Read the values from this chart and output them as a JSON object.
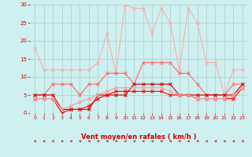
{
  "x": [
    0,
    1,
    2,
    3,
    4,
    5,
    6,
    7,
    8,
    9,
    10,
    11,
    12,
    13,
    14,
    15,
    16,
    17,
    18,
    19,
    20,
    21,
    22,
    23
  ],
  "series": [
    {
      "y": [
        18,
        12,
        12,
        12,
        12,
        12,
        12,
        14,
        22,
        11,
        30,
        29,
        29,
        22,
        29,
        25,
        12,
        29,
        25,
        14,
        14,
        5,
        12,
        12
      ],
      "color": "#ffaaaa",
      "lw": 0.8,
      "marker": "x",
      "ms": 2.5
    },
    {
      "y": [
        5,
        5,
        8,
        8,
        8,
        5,
        8,
        8,
        11,
        11,
        11,
        8,
        14,
        14,
        14,
        14,
        11,
        11,
        8,
        5,
        5,
        5,
        8,
        8
      ],
      "color": "#ff6666",
      "lw": 0.8,
      "marker": "x",
      "ms": 2.5
    },
    {
      "y": [
        5,
        5,
        5,
        1,
        1,
        1,
        1,
        5,
        5,
        5,
        5,
        8,
        8,
        8,
        8,
        8,
        5,
        5,
        5,
        5,
        5,
        5,
        5,
        8
      ],
      "color": "#cc0000",
      "lw": 0.8,
      "marker": "x",
      "ms": 2.5
    },
    {
      "y": [
        4,
        4,
        4,
        0,
        1,
        1,
        2,
        4,
        5,
        6,
        6,
        6,
        6,
        6,
        6,
        5,
        5,
        5,
        4,
        4,
        4,
        4,
        4,
        7
      ],
      "color": "#ff0000",
      "lw": 0.8,
      "marker": "x",
      "ms": 2.5
    },
    {
      "y": [
        4,
        4,
        4,
        1,
        2,
        3,
        4,
        5,
        6,
        7,
        7,
        7,
        7,
        7,
        7,
        6,
        5,
        5,
        4,
        4,
        4,
        4,
        5,
        7
      ],
      "color": "#ff9999",
      "lw": 0.8,
      "marker": "x",
      "ms": 2.5
    }
  ],
  "xlabel": "Vent moyen/en rafales ( km/h )",
  "xlim": [
    -0.5,
    23.5
  ],
  "ylim": [
    0,
    30
  ],
  "yticks": [
    0,
    5,
    10,
    15,
    20,
    25,
    30
  ],
  "xticks": [
    0,
    1,
    2,
    3,
    4,
    5,
    6,
    7,
    8,
    9,
    10,
    11,
    12,
    13,
    14,
    15,
    16,
    17,
    18,
    19,
    20,
    21,
    22,
    23
  ],
  "bg_color": "#cef0f0",
  "grid_color": "#aacccc",
  "xlabel_color": "#cc0000",
  "tick_color": "#cc0000"
}
